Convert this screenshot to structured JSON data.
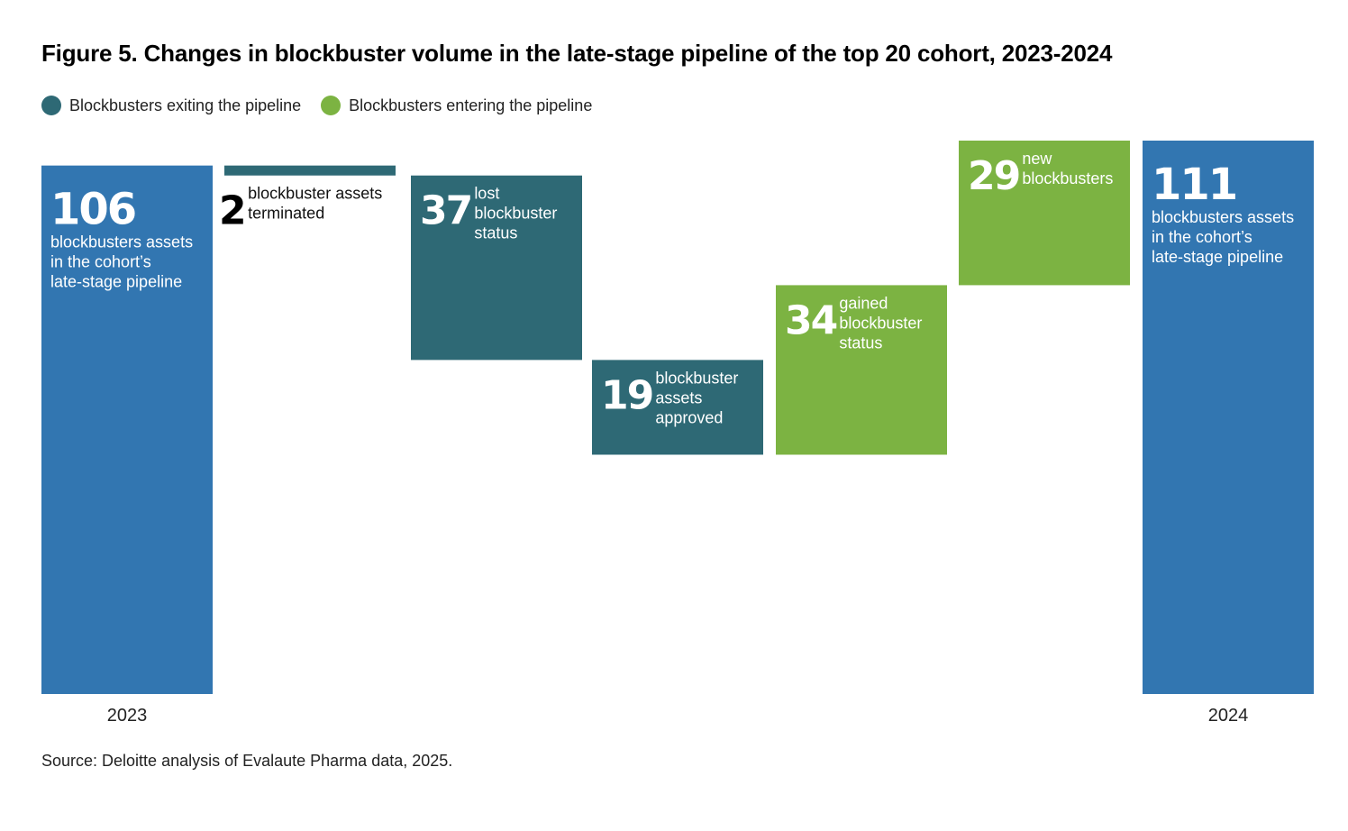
{
  "title": "Figure 5. Changes in blockbuster volume in the late-stage pipeline of the top 20 cohort, 2023-2024",
  "legend": [
    {
      "label": "Blockbusters exiting the pipeline",
      "color": "#2e6975"
    },
    {
      "label": "Blockbusters entering the pipeline",
      "color": "#7cb342"
    }
  ],
  "source": "Source: Deloitte analysis of Evalaute Pharma data, 2025.",
  "colors": {
    "total": "#3276b1",
    "exit": "#2e6975",
    "enter": "#7cb342"
  },
  "chart_data": {
    "type": "bar",
    "subtype": "waterfall",
    "ylim": [
      0,
      111
    ],
    "bars": [
      {
        "kind": "total",
        "value": 106,
        "number": "106",
        "lines": [
          "blockbusters assets",
          "in the cohort’s",
          "late-stage pipeline"
        ],
        "x_label": "2023"
      },
      {
        "kind": "exit",
        "value": 2,
        "number": "2",
        "lines": [
          "blockbuster assets",
          "terminated"
        ],
        "x_label": ""
      },
      {
        "kind": "exit",
        "value": 37,
        "number": "37",
        "lines": [
          "lost",
          "blockbuster",
          "status"
        ],
        "x_label": ""
      },
      {
        "kind": "exit",
        "value": 19,
        "number": "19",
        "lines": [
          "blockbuster",
          "assets",
          "approved"
        ],
        "x_label": ""
      },
      {
        "kind": "enter",
        "value": 34,
        "number": "34",
        "lines": [
          "gained",
          "blockbuster",
          "status"
        ],
        "x_label": ""
      },
      {
        "kind": "enter",
        "value": 29,
        "number": "29",
        "lines": [
          "new",
          "blockbusters"
        ],
        "x_label": ""
      },
      {
        "kind": "total",
        "value": 111,
        "number": "111",
        "lines": [
          "blockbusters assets",
          "in the cohort’s",
          "late-stage pipeline"
        ],
        "x_label": "2024"
      }
    ]
  }
}
